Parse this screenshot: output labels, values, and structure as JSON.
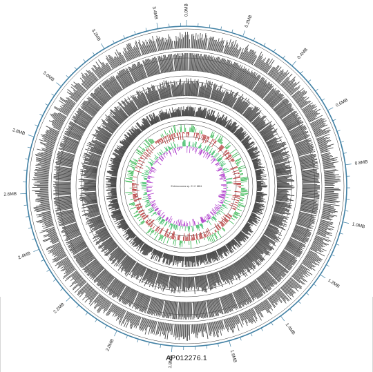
{
  "figure": {
    "caption": "AP012276.1",
    "center_label": "Enterococcus sp. 21 C 6811",
    "genome_length_mb": 3.5,
    "colors": {
      "scale_ring": "#3f7fa3",
      "track_fill": "#4a4a4a",
      "ring_line": "#333333",
      "gc_positive": "#2fb34a",
      "gc_negative": "#b03030",
      "skew_positive": "#48c070",
      "skew_negative": "#b64fd0"
    }
  },
  "axis": {
    "major_labels": [
      "0.0MB",
      "0.2MB",
      "0.4MB",
      "0.6MB",
      "0.8MB",
      "1.0MB",
      "1.2MB",
      "1.4MB",
      "1.6MB",
      "1.8MB",
      "2.0MB",
      "2.2MB",
      "2.4MB",
      "2.6MB",
      "2.8MB",
      "3.0MB",
      "3.2MB",
      "3.4MB"
    ],
    "major_values_mb": [
      0.0,
      0.2,
      0.4,
      0.6,
      0.8,
      1.0,
      1.2,
      1.4,
      1.6,
      1.8,
      2.0,
      2.2,
      2.4,
      2.6,
      2.8,
      3.0,
      3.2,
      3.4
    ],
    "minor_tick_step_mb": 0.04
  },
  "tracks": [
    {
      "name": "blast-ring-1",
      "kind": "density"
    },
    {
      "name": "blast-ring-2",
      "kind": "density"
    },
    {
      "name": "blast-ring-3",
      "kind": "density"
    },
    {
      "name": "blast-ring-4",
      "kind": "density"
    },
    {
      "name": "gc-content",
      "kind": "gc"
    },
    {
      "name": "gc-skew",
      "kind": "skew"
    }
  ]
}
